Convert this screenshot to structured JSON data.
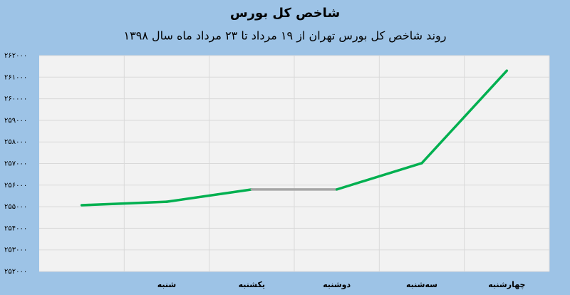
{
  "chart_data": {
    "type": "line",
    "title": "شاخص کل بورس",
    "subtitle": "روند شاخص کل بورس تهران از ۱۹ مرداد تا ۲۳ مرداد ماه سال ۱۳۹۸",
    "categories": [
      null,
      "شنبه",
      "یکشنبه",
      "دوشنبه",
      "سه‌شنبه",
      "چهارشنبه"
    ],
    "series": [
      {
        "color": "#00b050",
        "values": [
          255070,
          255230,
          255800,
          255800,
          257020,
          261300
        ]
      }
    ],
    "segment_colors": [
      "#00b050",
      "#00b050",
      "#a6a6a6",
      "#00b050",
      "#00b050"
    ],
    "ylim": [
      252000,
      262000
    ],
    "yticks": [
      {
        "value": 252000,
        "label": "۲۵۲۰۰۰"
      },
      {
        "value": 253000,
        "label": "۲۵۳۰۰۰"
      },
      {
        "value": 254000,
        "label": "۲۵۴۰۰۰"
      },
      {
        "value": 255000,
        "label": "۲۵۵۰۰۰"
      },
      {
        "value": 256000,
        "label": "۲۵۶۰۰۰"
      },
      {
        "value": 257000,
        "label": "۲۵۷۰۰۰"
      },
      {
        "value": 258000,
        "label": "۲۵۸۰۰۰"
      },
      {
        "value": 259000,
        "label": "۲۵۹۰۰۰"
      },
      {
        "value": 260000,
        "label": "۲۶۰۰۰۰"
      },
      {
        "value": 261000,
        "label": "۲۶۱۰۰۰"
      },
      {
        "value": 262000,
        "label": "۲۶۲۰۰۰"
      }
    ],
    "grid": true,
    "background": "#9dc3e6",
    "plot_background": "#f2f2f2"
  }
}
